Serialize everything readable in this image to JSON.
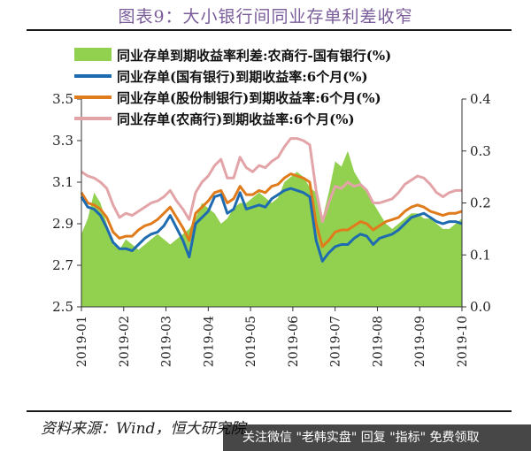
{
  "title": "图表9：大小银行间同业存单利差收窄",
  "source": "资料来源：Wind，恒大研究院",
  "watermark": "关注微信 \"老韩实盘\" 回复 \"指标\" 免费领取",
  "colors": {
    "spread": "#92d050",
    "state": "#1f6bb0",
    "joint": "#e07b1c",
    "rural": "#e3a4a8"
  },
  "chart_data": {
    "type": "line",
    "left_axis": {
      "min": 2.5,
      "max": 3.5,
      "ticks": [
        "2.5",
        "2.7",
        "2.9",
        "3.1",
        "3.3",
        "3.5"
      ]
    },
    "right_axis": {
      "min": 0.0,
      "max": 0.4,
      "ticks": [
        "0.0",
        "0.1",
        "0.2",
        "0.3",
        "0.4"
      ]
    },
    "x_ticks": [
      "2019-01",
      "2019-02",
      "2019-03",
      "2019-04",
      "2019-05",
      "2019-06",
      "2019-07",
      "2019-08",
      "2019-09",
      "2019-10"
    ],
    "x": [
      0.0,
      0.15,
      0.3,
      0.45,
      0.6,
      0.75,
      0.9,
      1.05,
      1.2,
      1.35,
      1.5,
      1.65,
      1.8,
      1.95,
      2.1,
      2.25,
      2.4,
      2.55,
      2.7,
      2.85,
      3.0,
      3.15,
      3.3,
      3.45,
      3.6,
      3.75,
      3.9,
      4.05,
      4.2,
      4.35,
      4.5,
      4.65,
      4.8,
      4.95,
      5.1,
      5.25,
      5.4,
      5.55,
      5.7,
      5.85,
      6.0,
      6.15,
      6.3,
      6.45,
      6.6,
      6.75,
      6.9,
      7.05,
      7.2,
      7.35,
      7.5,
      7.65,
      7.8,
      7.95,
      8.1,
      8.25,
      8.4,
      8.55,
      8.7,
      8.85,
      9.0
    ],
    "series": [
      {
        "name": "同业存单到期收益率利差:农商行-国有银行(%)",
        "kind": "area",
        "axis": "right",
        "values": [
          0.14,
          0.17,
          0.22,
          0.2,
          0.16,
          0.12,
          0.11,
          0.13,
          0.12,
          0.11,
          0.12,
          0.13,
          0.14,
          0.13,
          0.12,
          0.13,
          0.14,
          0.15,
          0.17,
          0.2,
          0.19,
          0.18,
          0.16,
          0.17,
          0.19,
          0.2,
          0.2,
          0.21,
          0.22,
          0.21,
          0.2,
          0.21,
          0.24,
          0.25,
          0.26,
          0.25,
          0.23,
          0.22,
          0.17,
          0.22,
          0.28,
          0.27,
          0.3,
          0.26,
          0.24,
          0.22,
          0.2,
          0.18,
          0.16,
          0.15,
          0.16,
          0.17,
          0.18,
          0.18,
          0.17,
          0.17,
          0.16,
          0.15,
          0.15,
          0.16,
          0.17
        ]
      },
      {
        "name": "同业存单(国有银行)到期收益率:6个月(%)",
        "kind": "line",
        "axis": "left",
        "values": [
          3.03,
          2.98,
          2.97,
          2.94,
          2.88,
          2.81,
          2.78,
          2.78,
          2.77,
          2.8,
          2.83,
          2.85,
          2.86,
          2.89,
          2.94,
          2.88,
          2.82,
          2.74,
          2.9,
          2.93,
          2.96,
          3.03,
          3.04,
          2.95,
          2.97,
          3.05,
          2.97,
          2.98,
          2.99,
          2.98,
          3.02,
          3.04,
          3.06,
          3.07,
          3.06,
          3.05,
          3.03,
          2.82,
          2.72,
          2.76,
          2.79,
          2.8,
          2.8,
          2.83,
          2.85,
          2.84,
          2.8,
          2.83,
          2.84,
          2.85,
          2.87,
          2.9,
          2.93,
          2.94,
          2.95,
          2.93,
          2.91,
          2.9,
          2.91,
          2.91,
          2.9
        ]
      },
      {
        "name": "同业存单(股份制银行)到期收益率:6个月(%)",
        "kind": "line",
        "axis": "left",
        "values": [
          3.05,
          3.0,
          2.99,
          2.97,
          2.93,
          2.86,
          2.83,
          2.84,
          2.84,
          2.87,
          2.89,
          2.9,
          2.92,
          2.95,
          2.98,
          2.93,
          2.88,
          2.82,
          2.95,
          2.98,
          3.01,
          3.05,
          3.06,
          3.0,
          3.02,
          3.08,
          3.04,
          3.04,
          3.06,
          3.05,
          3.08,
          3.09,
          3.12,
          3.14,
          3.13,
          3.12,
          3.1,
          2.9,
          2.79,
          2.82,
          2.86,
          2.87,
          2.87,
          2.89,
          2.91,
          2.9,
          2.87,
          2.89,
          2.91,
          2.92,
          2.93,
          2.96,
          2.98,
          2.99,
          2.98,
          2.96,
          2.95,
          2.94,
          2.95,
          2.95,
          2.96
        ]
      },
      {
        "name": "同业存单(农商行)到期收益率:6个月(%)",
        "kind": "line",
        "axis": "left",
        "values": [
          3.15,
          3.13,
          3.12,
          3.1,
          3.07,
          2.99,
          2.93,
          2.95,
          2.94,
          2.96,
          2.98,
          3.0,
          3.01,
          3.03,
          3.06,
          3.01,
          2.97,
          2.92,
          3.05,
          3.1,
          3.13,
          3.18,
          3.21,
          3.12,
          3.12,
          3.22,
          3.17,
          3.15,
          3.18,
          3.17,
          3.2,
          3.22,
          3.27,
          3.31,
          3.31,
          3.3,
          3.28,
          3.06,
          2.91,
          3.0,
          3.08,
          3.07,
          3.1,
          3.08,
          3.09,
          3.06,
          3.0,
          3.0,
          3.01,
          3.02,
          3.05,
          3.09,
          3.11,
          3.13,
          3.12,
          3.09,
          3.05,
          3.03,
          3.05,
          3.06,
          3.06
        ]
      }
    ],
    "legend_position": "top-left",
    "grid": false
  }
}
